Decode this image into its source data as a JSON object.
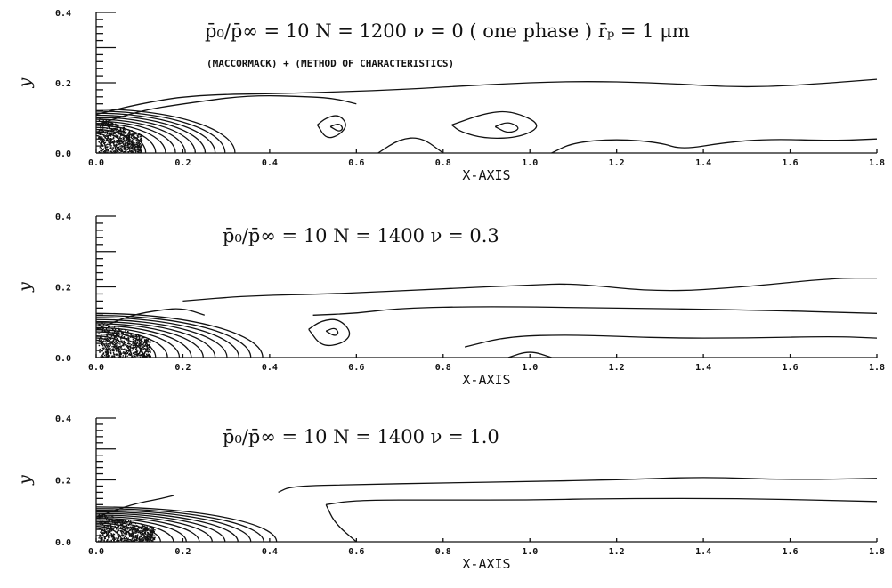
{
  "chart_data": [
    {
      "type": "contour",
      "title": "p̄₀/p̄∞ = 10    N = 1200    ν = 0 ( one phase )    r̄ₚ = 1 μm",
      "subtitle": "(MACCORMACK) + (METHOD OF CHARACTERISTICS)",
      "xlabel": "X-AXIS",
      "ylabel": "y",
      "xlim": [
        0.0,
        1.8
      ],
      "ylim": [
        0.0,
        0.4
      ],
      "xticks": [
        "0.0",
        "0.2",
        "0.4",
        "0.6",
        "0.8",
        "1.0",
        "1.2",
        "1.4",
        "1.6",
        "1.8"
      ],
      "yticks": [
        "0.0",
        "0.2",
        "0.4"
      ],
      "p0_over_pinf": 10,
      "N": 1200,
      "nu": 0,
      "rp_um": 1,
      "particle_cloud": {
        "x_max": 0.1,
        "y_max": 0.1
      },
      "contour_lines": [
        {
          "x": [
            0.0,
            0.1,
            0.22,
            0.45,
            0.7,
            0.9,
            1.1,
            1.3,
            1.5,
            1.7,
            1.8
          ],
          "y": [
            0.11,
            0.14,
            0.165,
            0.17,
            0.18,
            0.195,
            0.205,
            0.2,
            0.185,
            0.2,
            0.21
          ]
        },
        {
          "x": [
            0.0,
            0.1,
            0.2,
            0.35,
            0.5,
            0.55,
            0.6
          ],
          "y": [
            0.08,
            0.12,
            0.14,
            0.165,
            0.16,
            0.155,
            0.14
          ]
        },
        {
          "x": [
            0.51,
            0.53,
            0.56,
            0.58,
            0.56,
            0.53,
            0.51
          ],
          "y": [
            0.08,
            0.1,
            0.11,
            0.08,
            0.05,
            0.04,
            0.08
          ]
        },
        {
          "x": [
            0.54,
            0.56,
            0.57,
            0.56,
            0.54
          ],
          "y": [
            0.075,
            0.085,
            0.07,
            0.06,
            0.075
          ]
        },
        {
          "x": [
            0.82,
            0.9,
            0.96,
            1.03,
            0.98,
            0.9,
            0.84,
            0.82
          ],
          "y": [
            0.08,
            0.115,
            0.12,
            0.08,
            0.045,
            0.04,
            0.06,
            0.08
          ]
        },
        {
          "x": [
            0.92,
            0.95,
            0.98,
            0.95,
            0.92
          ],
          "y": [
            0.075,
            0.09,
            0.07,
            0.055,
            0.075
          ]
        },
        {
          "x": [
            1.05,
            1.1,
            1.2,
            1.3,
            1.35,
            1.45,
            1.55,
            1.7,
            1.8
          ],
          "y": [
            0.0,
            0.03,
            0.04,
            0.03,
            0.01,
            0.03,
            0.04,
            0.035,
            0.04
          ]
        },
        {
          "x": [
            0.65,
            0.7,
            0.75,
            0.8
          ],
          "y": [
            0.0,
            0.04,
            0.045,
            0.0
          ]
        }
      ]
    },
    {
      "type": "contour",
      "title": "p̄₀/p̄∞ = 10    N = 1400    ν = 0.3",
      "xlabel": "X-AXIS",
      "ylabel": "y",
      "xlim": [
        0.0,
        1.8
      ],
      "ylim": [
        0.0,
        0.4
      ],
      "xticks": [
        "0.0",
        "0.2",
        "0.4",
        "0.6",
        "0.8",
        "1.0",
        "1.2",
        "1.4",
        "1.6",
        "1.8"
      ],
      "yticks": [
        "0.0",
        "0.2",
        "0.4"
      ],
      "p0_over_pinf": 10,
      "N": 1400,
      "nu": 0.3,
      "particle_cloud": {
        "x_max": 0.12,
        "y_max": 0.1
      },
      "contour_lines": [
        {
          "x": [
            0.2,
            0.35,
            0.55,
            0.8,
            1.0,
            1.1,
            1.3,
            1.5,
            1.7,
            1.8
          ],
          "y": [
            0.16,
            0.175,
            0.18,
            0.195,
            0.205,
            0.21,
            0.185,
            0.2,
            0.225,
            0.225
          ]
        },
        {
          "x": [
            0.0,
            0.08,
            0.15,
            0.2,
            0.25
          ],
          "y": [
            0.08,
            0.12,
            0.135,
            0.14,
            0.12
          ]
        },
        {
          "x": [
            0.5,
            0.6,
            0.7,
            0.9,
            1.2,
            1.5,
            1.8
          ],
          "y": [
            0.12,
            0.125,
            0.14,
            0.145,
            0.14,
            0.135,
            0.125
          ]
        },
        {
          "x": [
            0.49,
            0.52,
            0.56,
            0.59,
            0.57,
            0.52,
            0.49
          ],
          "y": [
            0.08,
            0.105,
            0.11,
            0.07,
            0.04,
            0.03,
            0.08
          ]
        },
        {
          "x": [
            0.53,
            0.55,
            0.56,
            0.55,
            0.53
          ],
          "y": [
            0.075,
            0.085,
            0.07,
            0.06,
            0.075
          ]
        },
        {
          "x": [
            0.85,
            0.95,
            1.1,
            1.3,
            1.5,
            1.7,
            1.8
          ],
          "y": [
            0.03,
            0.06,
            0.065,
            0.055,
            0.055,
            0.06,
            0.055
          ]
        },
        {
          "x": [
            0.95,
            1.0,
            1.05
          ],
          "y": [
            0.0,
            0.02,
            0.0
          ]
        }
      ]
    },
    {
      "type": "contour",
      "title": "p̄₀/p̄∞ = 10    N = 1400    ν = 1.0",
      "xlabel": "X-AXIS",
      "ylabel": "y",
      "xlim": [
        0.0,
        1.8
      ],
      "ylim": [
        0.0,
        0.4
      ],
      "xticks": [
        "0.0",
        "0.2",
        "0.4",
        "0.6",
        "0.8",
        "1.0",
        "1.2",
        "1.4",
        "1.6",
        "1.8"
      ],
      "yticks": [
        "0.0",
        "0.2",
        "0.4"
      ],
      "p0_over_pinf": 10,
      "N": 1400,
      "nu": 1.0,
      "particle_cloud": {
        "x_max": 0.13,
        "y_max": 0.09
      },
      "contour_lines": [
        {
          "x": [
            0.42,
            0.45,
            0.6,
            0.8,
            1.0,
            1.2,
            1.4,
            1.6,
            1.8
          ],
          "y": [
            0.16,
            0.18,
            0.185,
            0.19,
            0.195,
            0.2,
            0.21,
            0.2,
            0.205
          ]
        },
        {
          "x": [
            0.0,
            0.08,
            0.15,
            0.18
          ],
          "y": [
            0.08,
            0.12,
            0.14,
            0.15
          ]
        },
        {
          "x": [
            0.53,
            0.6,
            0.8,
            1.0,
            1.2,
            1.5,
            1.8
          ],
          "y": [
            0.12,
            0.135,
            0.135,
            0.135,
            0.14,
            0.14,
            0.13
          ]
        },
        {
          "x": [
            0.53,
            0.55,
            0.6
          ],
          "y": [
            0.12,
            0.06,
            0.0
          ]
        }
      ]
    }
  ]
}
